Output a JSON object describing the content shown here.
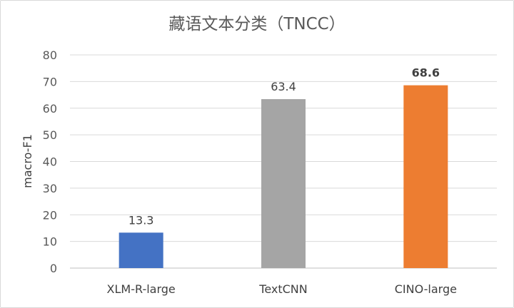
{
  "chart_data": {
    "type": "bar",
    "title": "藏语文本分类（TNCC）",
    "xlabel": "",
    "ylabel": "macro-F1",
    "ylim": [
      0,
      80
    ],
    "yticks": [
      0,
      10,
      20,
      30,
      40,
      50,
      60,
      70,
      80
    ],
    "grid": true,
    "legend": "none",
    "categories": [
      "XLM-R-large",
      "TextCNN",
      "CINO-large"
    ],
    "values": [
      13.3,
      63.4,
      68.6
    ],
    "data_labels": [
      "13.3",
      "63.4",
      "68.6"
    ],
    "bold_labels": [
      false,
      false,
      true
    ],
    "colors": [
      "#4472c4",
      "#a5a5a5",
      "#ed7d31"
    ]
  }
}
